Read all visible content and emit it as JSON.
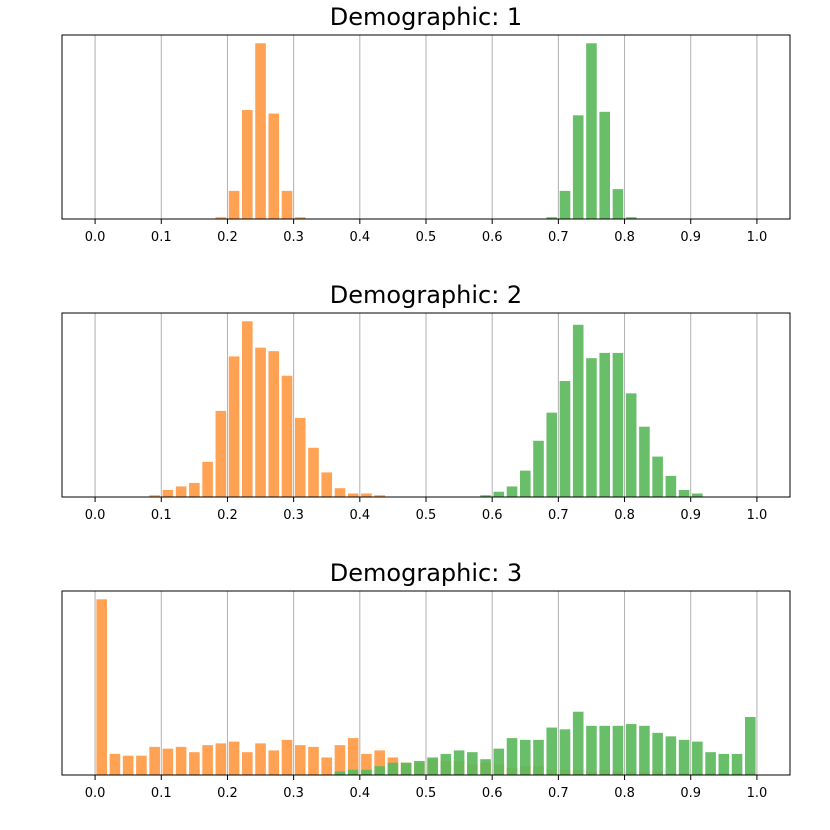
{
  "colors": {
    "orange": "#ff9a45",
    "green": "#5cb85c",
    "grid": "#b0b0b0",
    "axis": "#000000"
  },
  "chart_data": [
    {
      "type": "bar",
      "title": "Demographic: 1",
      "xlim": [
        -0.05,
        1.05
      ],
      "xticks": [
        "0.0",
        "0.1",
        "0.2",
        "0.3",
        "0.4",
        "0.5",
        "0.6",
        "0.7",
        "0.8",
        "0.9",
        "1.0"
      ],
      "grid": "vertical",
      "bin_width": 0.02,
      "ymax": 1.0,
      "series": [
        {
          "color": "orange",
          "x": [
            0.19,
            0.21,
            0.23,
            0.25,
            0.27,
            0.29,
            0.31
          ],
          "values": [
            0.01,
            0.16,
            0.62,
            1.0,
            0.6,
            0.16,
            0.01
          ]
        },
        {
          "color": "green",
          "x": [
            0.69,
            0.71,
            0.73,
            0.75,
            0.77,
            0.79,
            0.81
          ],
          "values": [
            0.01,
            0.16,
            0.59,
            1.0,
            0.61,
            0.17,
            0.01
          ]
        }
      ]
    },
    {
      "type": "bar",
      "title": "Demographic: 2",
      "xlim": [
        -0.05,
        1.05
      ],
      "xticks": [
        "0.0",
        "0.1",
        "0.2",
        "0.3",
        "0.4",
        "0.5",
        "0.6",
        "0.7",
        "0.8",
        "0.9",
        "1.0"
      ],
      "grid": "vertical",
      "bin_width": 0.02,
      "ymax": 1.0,
      "series": [
        {
          "color": "orange",
          "x": [
            0.09,
            0.11,
            0.13,
            0.15,
            0.17,
            0.19,
            0.21,
            0.23,
            0.25,
            0.27,
            0.29,
            0.31,
            0.33,
            0.35,
            0.37,
            0.39,
            0.41,
            0.43
          ],
          "values": [
            0.01,
            0.04,
            0.06,
            0.08,
            0.2,
            0.49,
            0.8,
            1.0,
            0.85,
            0.83,
            0.69,
            0.45,
            0.28,
            0.14,
            0.05,
            0.02,
            0.02,
            0.01
          ]
        },
        {
          "color": "green",
          "x": [
            0.59,
            0.61,
            0.63,
            0.65,
            0.67,
            0.69,
            0.71,
            0.73,
            0.75,
            0.77,
            0.79,
            0.81,
            0.83,
            0.85,
            0.87,
            0.89,
            0.91
          ],
          "values": [
            0.01,
            0.03,
            0.06,
            0.15,
            0.32,
            0.48,
            0.66,
            0.98,
            0.79,
            0.82,
            0.82,
            0.59,
            0.4,
            0.23,
            0.12,
            0.04,
            0.02
          ]
        }
      ]
    },
    {
      "type": "bar",
      "title": "Demographic: 3",
      "xlim": [
        -0.05,
        1.05
      ],
      "xticks": [
        "0.0",
        "0.1",
        "0.2",
        "0.3",
        "0.4",
        "0.5",
        "0.6",
        "0.7",
        "0.8",
        "0.9",
        "1.0"
      ],
      "grid": "vertical",
      "bin_width": 0.02,
      "ymax": 1.0,
      "series": [
        {
          "color": "orange",
          "x": [
            0.01,
            0.03,
            0.05,
            0.07,
            0.09,
            0.11,
            0.13,
            0.15,
            0.17,
            0.19,
            0.21,
            0.23,
            0.25,
            0.27,
            0.29,
            0.31,
            0.33,
            0.35,
            0.37,
            0.39,
            0.41,
            0.43,
            0.45,
            0.47,
            0.49,
            0.51,
            0.53,
            0.55,
            0.57,
            0.59,
            0.61,
            0.63,
            0.65,
            0.67,
            0.69,
            0.71,
            0.73,
            0.75,
            0.77,
            0.79,
            0.81,
            0.83,
            0.85,
            0.87,
            0.89,
            0.91,
            0.93,
            0.95,
            0.97,
            0.99
          ],
          "values": [
            1.0,
            0.12,
            0.11,
            0.11,
            0.16,
            0.15,
            0.16,
            0.13,
            0.17,
            0.18,
            0.19,
            0.13,
            0.18,
            0.14,
            0.2,
            0.17,
            0.16,
            0.1,
            0.17,
            0.21,
            0.12,
            0.14,
            0.1,
            0.07,
            0.07,
            0.09,
            0.08,
            0.08,
            0.06,
            0.07,
            0.06,
            0.04,
            0.05,
            0.05,
            0.03,
            0.03,
            0.03,
            0.02,
            0.03,
            0.02,
            0.02,
            0.02,
            0.02,
            0.01,
            0.01,
            0.01,
            0.01,
            0.01,
            0.01,
            0.01
          ]
        },
        {
          "color": "green",
          "x": [
            0.37,
            0.39,
            0.41,
            0.43,
            0.45,
            0.47,
            0.49,
            0.51,
            0.53,
            0.55,
            0.57,
            0.59,
            0.61,
            0.63,
            0.65,
            0.67,
            0.69,
            0.71,
            0.73,
            0.75,
            0.77,
            0.79,
            0.81,
            0.83,
            0.85,
            0.87,
            0.89,
            0.91,
            0.93,
            0.95,
            0.97,
            0.99
          ],
          "values": [
            0.02,
            0.03,
            0.03,
            0.05,
            0.07,
            0.07,
            0.08,
            0.1,
            0.12,
            0.14,
            0.13,
            0.09,
            0.15,
            0.21,
            0.2,
            0.2,
            0.27,
            0.26,
            0.36,
            0.28,
            0.28,
            0.28,
            0.29,
            0.28,
            0.24,
            0.22,
            0.2,
            0.19,
            0.13,
            0.12,
            0.12,
            0.33
          ]
        }
      ]
    }
  ]
}
